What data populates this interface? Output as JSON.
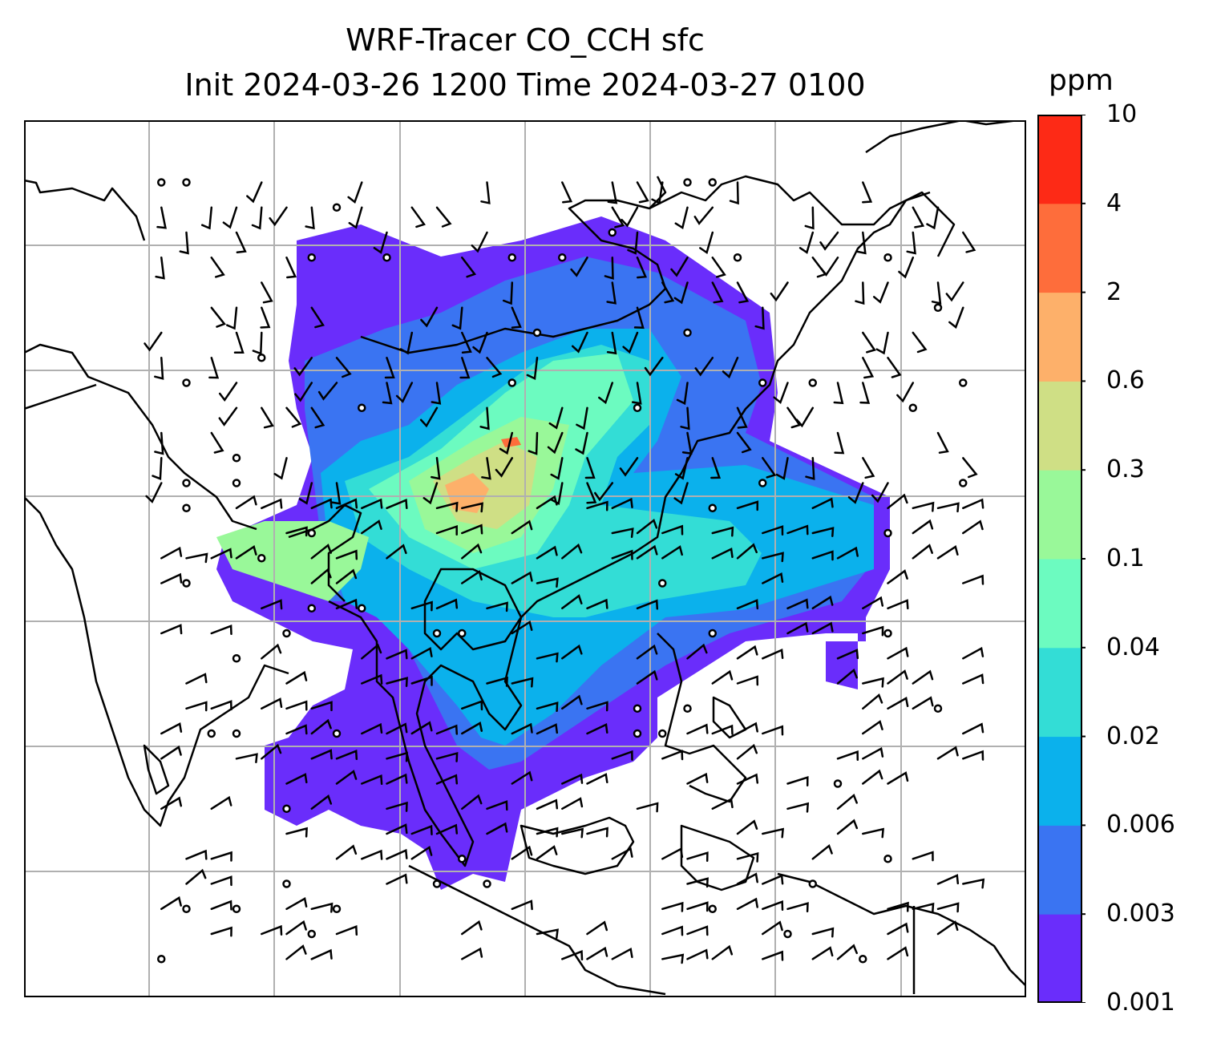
{
  "title": {
    "line1": "WRF-Tracer CO_CCH sfc",
    "line2": "Init 2024-03-26 1200 Time 2024-03-27 0100"
  },
  "colorbar": {
    "unit": "ppm",
    "levels": [
      "0.001",
      "0.003",
      "0.006",
      "0.02",
      "0.04",
      "0.1",
      "0.3",
      "0.6",
      "2",
      "4",
      "10"
    ],
    "colors": [
      "#6a2dfb",
      "#3a74f2",
      "#0bb1ec",
      "#33ddd6",
      "#6cfbc0",
      "#99f899",
      "#cfdf85",
      "#fdb06a",
      "#fe6d3b",
      "#fd2a16"
    ]
  },
  "map": {
    "background": "#ffffff",
    "gridline_color": "#b0b0b0",
    "coastline_color": "#000000",
    "wind_barb_color": "#000000"
  }
}
